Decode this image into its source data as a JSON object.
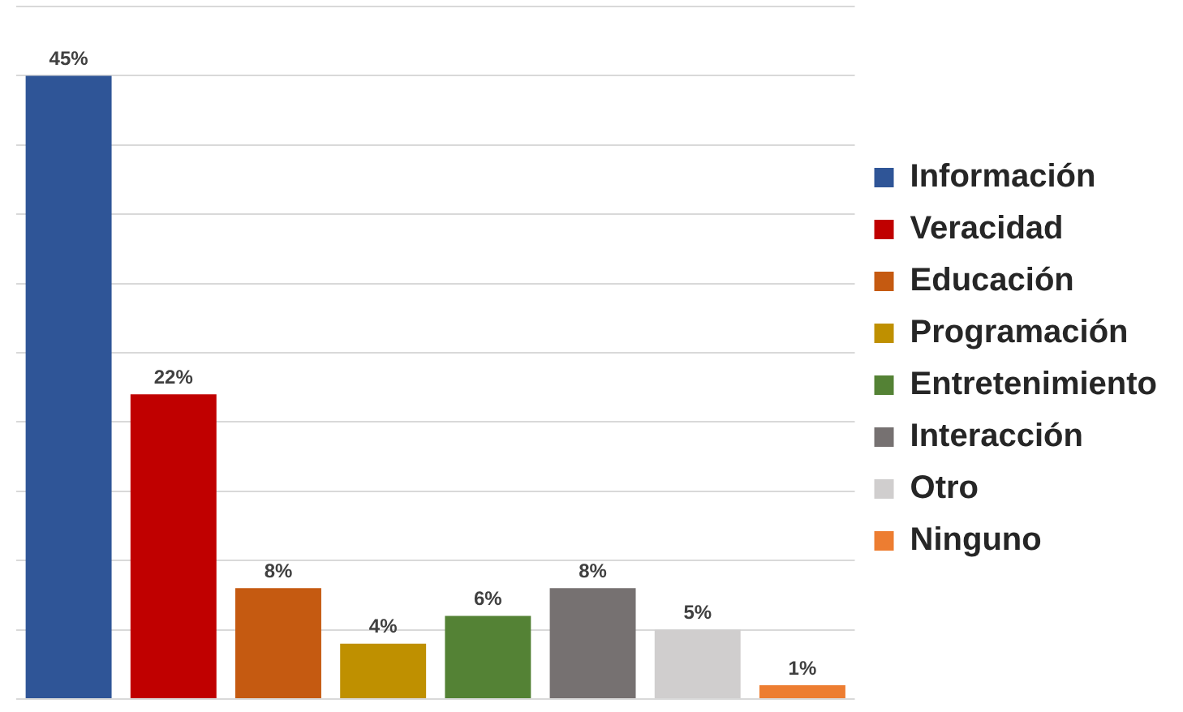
{
  "chart_data": {
    "type": "bar",
    "categories": [
      null,
      null,
      null,
      null,
      null,
      null,
      null,
      null
    ],
    "series": [
      {
        "name": "Información",
        "color": "#2f5597",
        "values": [
          45,
          null,
          null,
          null,
          null,
          null,
          null,
          null
        ],
        "value_labels": [
          "45%",
          null,
          null,
          null,
          null,
          null,
          null,
          null
        ]
      },
      {
        "name": "Veracidad",
        "color": "#c00000",
        "values": [
          null,
          22,
          null,
          null,
          null,
          null,
          null,
          null
        ],
        "value_labels": [
          null,
          "22%",
          null,
          null,
          null,
          null,
          null,
          null
        ]
      },
      {
        "name": "Educación",
        "color": "#c55a11",
        "values": [
          null,
          null,
          8,
          null,
          null,
          null,
          null,
          null
        ],
        "value_labels": [
          null,
          null,
          "8%",
          null,
          null,
          null,
          null,
          null
        ]
      },
      {
        "name": "Programación",
        "color": "#bf9000",
        "values": [
          null,
          null,
          null,
          4,
          null,
          null,
          null,
          null
        ],
        "value_labels": [
          null,
          null,
          null,
          "4%",
          null,
          null,
          null,
          null
        ]
      },
      {
        "name": "Entretenimiento",
        "color": "#548235",
        "values": [
          null,
          null,
          null,
          null,
          6,
          null,
          null,
          null
        ],
        "value_labels": [
          null,
          null,
          null,
          null,
          "6%",
          null,
          null,
          null
        ]
      },
      {
        "name": "Interacción",
        "color": "#767171",
        "values": [
          null,
          null,
          null,
          null,
          null,
          8,
          null,
          null
        ],
        "value_labels": [
          null,
          null,
          null,
          null,
          null,
          "8%",
          null,
          null
        ]
      },
      {
        "name": "Otro",
        "color": "#d0cece",
        "values": [
          null,
          null,
          null,
          null,
          null,
          null,
          5,
          null
        ],
        "value_labels": [
          null,
          null,
          null,
          null,
          null,
          null,
          "5%",
          null
        ]
      },
      {
        "name": "Ninguno",
        "color": "#ed7d31",
        "values": [
          null,
          null,
          null,
          null,
          null,
          null,
          null,
          1
        ],
        "value_labels": [
          null,
          null,
          null,
          null,
          null,
          null,
          null,
          "1%"
        ]
      }
    ],
    "ylim": [
      0,
      50
    ],
    "yticks": [
      {
        "value": 0,
        "label": null
      },
      {
        "value": 5,
        "label": null
      },
      {
        "value": 10,
        "label": null
      },
      {
        "value": 15,
        "label": null
      },
      {
        "value": 20,
        "label": null
      },
      {
        "value": 25,
        "label": null
      },
      {
        "value": 30,
        "label": null
      },
      {
        "value": 35,
        "label": null
      },
      {
        "value": 40,
        "label": null
      },
      {
        "value": 45,
        "label": null
      },
      {
        "value": 50,
        "label": null
      }
    ],
    "stacked": true,
    "grid": "y",
    "legend": "right",
    "tick_labels": false
  }
}
